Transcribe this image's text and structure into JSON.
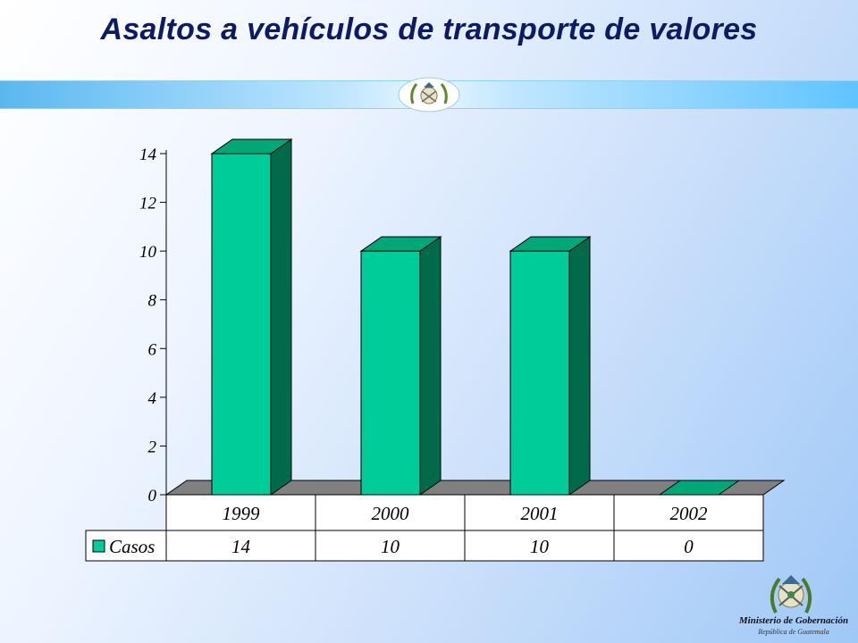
{
  "title": "Asaltos a vehículos de transporte de valores",
  "logo": {
    "name": "Ministerio de Gobernación",
    "subtitle": "República de Guatemala"
  },
  "colors": {
    "bar_front": "#00cc99",
    "bar_side": "#006a4a",
    "bar_top": "#00a877",
    "floor": "#808080",
    "title": "#0d1a66"
  },
  "chart_data": {
    "type": "bar",
    "title": "",
    "xlabel": "",
    "ylabel": "",
    "categories": [
      "1999",
      "2000",
      "2001",
      "2002"
    ],
    "series": [
      {
        "name": "Casos",
        "values": [
          14,
          10,
          10,
          0
        ]
      }
    ],
    "ylim": [
      0,
      14
    ],
    "yticks": [
      0,
      2,
      4,
      6,
      8,
      10,
      12,
      14
    ],
    "data_table": true,
    "legend": "in data table",
    "grid": false
  }
}
